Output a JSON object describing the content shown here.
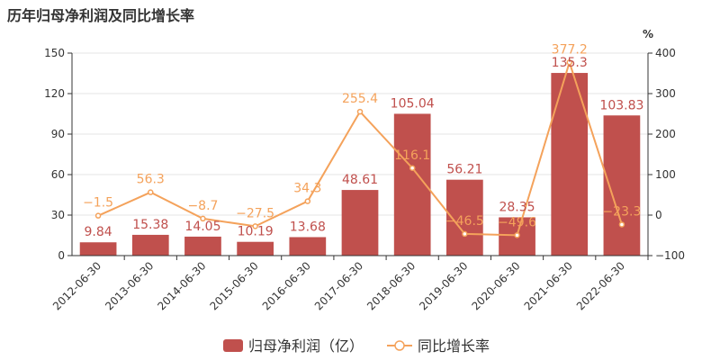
{
  "chart_data": {
    "type": "bar",
    "title": "历年归母净利润及同比增长率",
    "categories": [
      "2012-06-30",
      "2013-06-30",
      "2014-06-30",
      "2015-06-30",
      "2016-06-30",
      "2017-06-30",
      "2018-06-30",
      "2019-06-30",
      "2020-06-30",
      "2021-06-30",
      "2022-06-30"
    ],
    "series": [
      {
        "name": "归母净利润（亿）",
        "type": "bar",
        "axis": "left",
        "color": "#c0504d",
        "values": [
          9.84,
          15.38,
          14.05,
          10.19,
          13.68,
          48.61,
          105.04,
          56.21,
          28.35,
          135.3,
          103.83
        ],
        "labels": [
          "9.84",
          "15.38",
          "14.05",
          "10.19",
          "13.68",
          "48.61",
          "105.04",
          "56.21",
          "28.35",
          "135.3",
          "103.83"
        ]
      },
      {
        "name": "同比增长率",
        "type": "line",
        "axis": "right",
        "color": "#f4a25b",
        "values": [
          -1.5,
          56.3,
          -8.7,
          -27.5,
          34.3,
          255.4,
          116.1,
          -46.5,
          -49.6,
          377.2,
          -23.3
        ],
        "labels": [
          "−1.5",
          "56.3",
          "−8.7",
          "−27.5",
          "34.3",
          "255.4",
          "116.1",
          "−46.5",
          "−49.6",
          "377.2",
          "−23.3"
        ]
      }
    ],
    "yleft": {
      "min": 0,
      "max": 150,
      "ticks": [
        "0",
        "30",
        "60",
        "90",
        "120",
        "150"
      ]
    },
    "yright": {
      "min": -100,
      "max": 400,
      "unit": "%",
      "ticks": [
        "−100",
        "0",
        "100",
        "200",
        "300",
        "400"
      ]
    },
    "grid": true,
    "legend": "bottom-center"
  }
}
